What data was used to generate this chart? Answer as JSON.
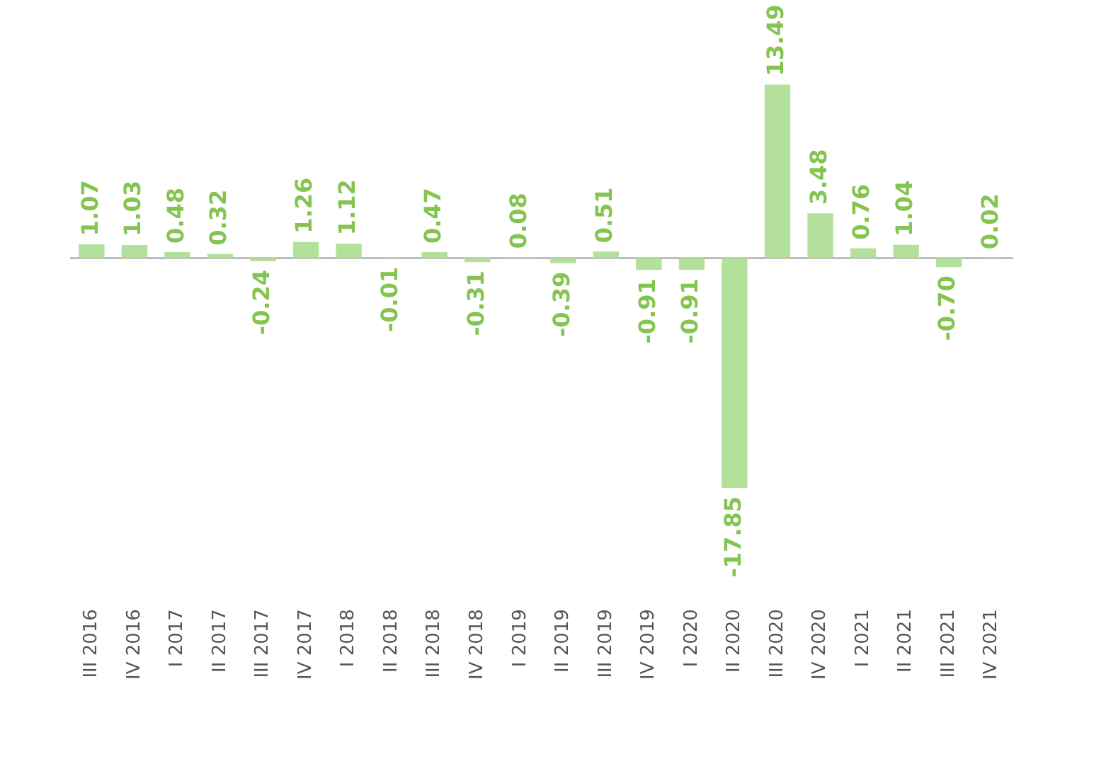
{
  "chart_data": {
    "type": "bar",
    "categories": [
      "III 2016",
      "IV 2016",
      "I 2017",
      "II 2017",
      "III 2017",
      "IV 2017",
      "I 2018",
      "II 2018",
      "III 2018",
      "IV 2018",
      "I 2019",
      "II 2019",
      "III 2019",
      "IV 2019",
      "I 2020",
      "II 2020",
      "III 2020",
      "IV 2020",
      "I 2021",
      "II 2021",
      "III 2021",
      "IV 2021"
    ],
    "values": [
      1.07,
      1.03,
      0.48,
      0.32,
      -0.24,
      1.26,
      1.12,
      -0.01,
      0.47,
      -0.31,
      0.08,
      -0.39,
      0.51,
      -0.91,
      -0.91,
      -17.85,
      13.49,
      3.48,
      0.76,
      1.04,
      -0.7,
      0.02
    ],
    "value_labels": [
      "1.07",
      "1.03",
      "0.48",
      "0.32",
      "-0.24",
      "1.26",
      "1.12",
      "-0.01",
      "0.47",
      "-0.31",
      "0.08",
      "-0.39",
      "0.51",
      "-0.91",
      "-0.91",
      "-17.85",
      "13.49",
      "3.48",
      "0.76",
      "1.04",
      "-0.70",
      "0.02"
    ],
    "color": "#b3e09a",
    "tick_labels": "x",
    "grid": false,
    "legend": false
  }
}
